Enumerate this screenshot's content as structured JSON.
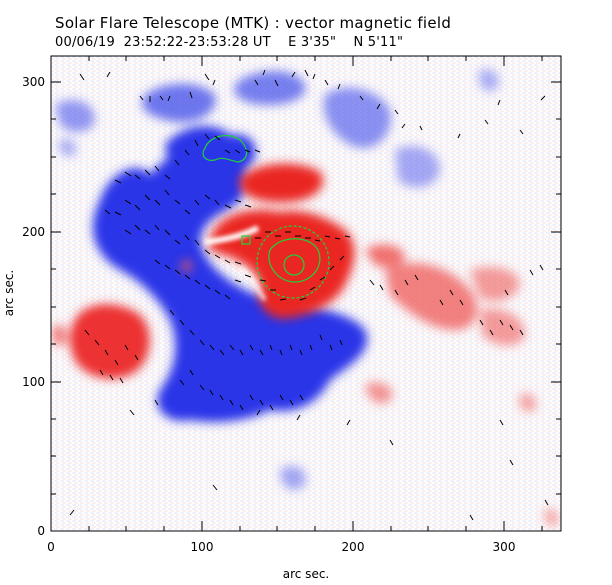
{
  "title": "Solar Flare Telescope (MTK) : vector magnetic field",
  "subtitle": {
    "date": "00/06/19",
    "time": "23:52:22-23:53:28 UT",
    "east": "E 3'35\"",
    "north": "N 5'11\""
  },
  "axes": {
    "xlabel": "arc sec.",
    "ylabel": "arc sec.",
    "x_ticks": [
      "0",
      "100",
      "200",
      "300"
    ],
    "y_ticks": [
      "0",
      "100",
      "200",
      "300"
    ],
    "x_range": [
      0,
      340
    ],
    "y_range": [
      0,
      315
    ]
  },
  "colors": {
    "positive": "#e8231f",
    "negative": "#1f2ce0",
    "contour": "#1fd23a",
    "vector": "#000000"
  },
  "regions": [
    {
      "name": "negative-main",
      "polarity": "negative"
    },
    {
      "name": "positive-center",
      "polarity": "positive"
    },
    {
      "name": "positive-left",
      "polarity": "positive"
    },
    {
      "name": "positive-right",
      "polarity": "positive"
    }
  ]
}
